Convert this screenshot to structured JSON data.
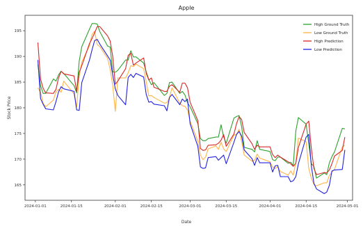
{
  "chart_data": {
    "type": "line",
    "title": "Apple",
    "xlabel": "Date",
    "ylabel": "Stock Price",
    "x_ticks": [
      "2024-01-01",
      "2024-01-15",
      "2024-02-01",
      "2024-02-15",
      "2024-03-01",
      "2024-03-15",
      "2024-04-01",
      "2024-04-15",
      "2024-05-01"
    ],
    "y_ticks": [
      165,
      170,
      175,
      180,
      185,
      190,
      195
    ],
    "xlim": [
      "2023-12-28",
      "2024-05-03"
    ],
    "ylim": [
      162,
      198
    ],
    "grid": false,
    "legend_position": "top-right",
    "series": [
      {
        "name": "High Ground Truth",
        "color": "#2ca02c",
        "x": [
          "2024-01-02",
          "2024-01-03",
          "2024-01-04",
          "2024-01-05",
          "2024-01-08",
          "2024-01-09",
          "2024-01-10",
          "2024-01-11",
          "2024-01-12",
          "2024-01-16",
          "2024-01-17",
          "2024-01-18",
          "2024-01-19",
          "2024-01-22",
          "2024-01-23",
          "2024-01-24",
          "2024-01-25",
          "2024-01-26",
          "2024-01-29",
          "2024-01-30",
          "2024-01-31",
          "2024-02-01",
          "2024-02-02",
          "2024-02-05",
          "2024-02-06",
          "2024-02-07",
          "2024-02-08",
          "2024-02-09",
          "2024-02-12",
          "2024-02-13",
          "2024-02-14",
          "2024-02-15",
          "2024-02-16",
          "2024-02-20",
          "2024-02-21",
          "2024-02-22",
          "2024-02-23",
          "2024-02-26",
          "2024-02-27",
          "2024-02-28",
          "2024-02-29",
          "2024-03-01",
          "2024-03-04",
          "2024-03-05",
          "2024-03-06",
          "2024-03-07",
          "2024-03-08",
          "2024-03-11",
          "2024-03-12",
          "2024-03-13",
          "2024-03-14",
          "2024-03-15",
          "2024-03-18",
          "2024-03-19",
          "2024-03-20",
          "2024-03-21",
          "2024-03-22",
          "2024-03-25",
          "2024-03-26",
          "2024-03-27",
          "2024-03-28",
          "2024-04-01",
          "2024-04-02",
          "2024-04-03",
          "2024-04-04",
          "2024-04-05",
          "2024-04-08",
          "2024-04-09",
          "2024-04-10",
          "2024-04-11",
          "2024-04-12",
          "2024-04-15",
          "2024-04-16",
          "2024-04-17",
          "2024-04-18",
          "2024-04-19",
          "2024-04-22",
          "2024-04-23",
          "2024-04-24",
          "2024-04-25",
          "2024-04-26",
          "2024-04-29",
          "2024-04-30"
        ],
        "y": [
          188.4,
          184.3,
          182.8,
          182.8,
          185.6,
          185.2,
          186.4,
          187.1,
          186.7,
          184.3,
          182.9,
          189.1,
          191.9,
          195.3,
          196.4,
          196.4,
          196.3,
          194.8,
          192.0,
          191.8,
          187.0,
          186.9,
          187.3,
          189.3,
          189.3,
          191.1,
          189.9,
          189.9,
          188.7,
          187.0,
          185.5,
          184.5,
          184.9,
          182.4,
          182.8,
          184.9,
          185.0,
          182.8,
          183.2,
          182.5,
          181.0,
          180.2,
          176.9,
          174.0,
          173.6,
          173.6,
          174.0,
          174.3,
          174.3,
          176.7,
          174.3,
          173.1,
          178.0,
          178.3,
          178.5,
          176.3,
          172.3,
          171.9,
          171.4,
          173.6,
          171.9,
          171.5,
          169.9,
          169.7,
          170.4,
          170.4,
          169.2,
          169.4,
          168.8,
          175.5,
          178.1,
          176.8,
          173.0,
          169.1,
          168.6,
          166.3,
          167.3,
          167.0,
          169.3,
          170.5,
          171.4,
          176.0,
          175.9
        ]
      },
      {
        "name": "Low Ground Truth",
        "color": "#ffb347",
        "x": [
          "2024-01-02",
          "2024-01-03",
          "2024-01-04",
          "2024-01-05",
          "2024-01-08",
          "2024-01-09",
          "2024-01-10",
          "2024-01-11",
          "2024-01-12",
          "2024-01-16",
          "2024-01-17",
          "2024-01-18",
          "2024-01-19",
          "2024-01-22",
          "2024-01-23",
          "2024-01-24",
          "2024-01-25",
          "2024-01-26",
          "2024-01-29",
          "2024-01-30",
          "2024-01-31",
          "2024-02-01",
          "2024-02-02",
          "2024-02-05",
          "2024-02-06",
          "2024-02-07",
          "2024-02-08",
          "2024-02-09",
          "2024-02-12",
          "2024-02-13",
          "2024-02-14",
          "2024-02-15",
          "2024-02-16",
          "2024-02-20",
          "2024-02-21",
          "2024-02-22",
          "2024-02-23",
          "2024-02-26",
          "2024-02-27",
          "2024-02-28",
          "2024-02-29",
          "2024-03-01",
          "2024-03-04",
          "2024-03-05",
          "2024-03-06",
          "2024-03-07",
          "2024-03-08",
          "2024-03-11",
          "2024-03-12",
          "2024-03-13",
          "2024-03-14",
          "2024-03-15",
          "2024-03-18",
          "2024-03-19",
          "2024-03-20",
          "2024-03-21",
          "2024-03-22",
          "2024-03-25",
          "2024-03-26",
          "2024-03-27",
          "2024-03-28",
          "2024-04-01",
          "2024-04-02",
          "2024-04-03",
          "2024-04-04",
          "2024-04-05",
          "2024-04-08",
          "2024-04-09",
          "2024-04-10",
          "2024-04-11",
          "2024-04-12",
          "2024-04-15",
          "2024-04-16",
          "2024-04-17",
          "2024-04-18",
          "2024-04-19",
          "2024-04-22",
          "2024-04-23",
          "2024-04-24",
          "2024-04-25",
          "2024-04-26",
          "2024-04-29",
          "2024-04-30"
        ],
        "y": [
          183.9,
          183.0,
          180.9,
          180.2,
          181.5,
          183.1,
          183.6,
          183.0,
          185.2,
          182.7,
          180.2,
          186.2,
          188.9,
          192.1,
          194.3,
          194.9,
          192.3,
          191.9,
          189.6,
          187.5,
          184.4,
          179.3,
          185.8,
          185.8,
          186.8,
          188.2,
          188.0,
          188.5,
          187.6,
          185.0,
          182.3,
          182.4,
          182.0,
          180.9,
          181.0,
          182.0,
          183.9,
          180.9,
          180.4,
          180.3,
          179.6,
          177.4,
          173.5,
          170.8,
          169.9,
          170.4,
          172.0,
          172.6,
          171.9,
          173.3,
          172.0,
          171.5,
          174.7,
          174.8,
          175.8,
          173.4,
          170.8,
          169.6,
          169.8,
          171.0,
          170.2,
          169.5,
          168.5,
          168.2,
          168.5,
          167.6,
          166.9,
          167.7,
          166.9,
          169.4,
          174.1,
          173.4,
          168.2,
          166.3,
          165.1,
          164.8,
          165.4,
          165.4,
          166.8,
          167.5,
          168.0,
          172.4,
          172.7
        ]
      },
      {
        "name": "High Prediction",
        "color": "#d62728",
        "x": [
          "2024-01-02",
          "2024-01-03",
          "2024-01-04",
          "2024-01-05",
          "2024-01-08",
          "2024-01-09",
          "2024-01-10",
          "2024-01-11",
          "2024-01-12",
          "2024-01-16",
          "2024-01-17",
          "2024-01-18",
          "2024-01-19",
          "2024-01-22",
          "2024-01-23",
          "2024-01-24",
          "2024-01-25",
          "2024-01-26",
          "2024-01-29",
          "2024-01-30",
          "2024-01-31",
          "2024-02-01",
          "2024-02-02",
          "2024-02-05",
          "2024-02-06",
          "2024-02-07",
          "2024-02-08",
          "2024-02-09",
          "2024-02-12",
          "2024-02-13",
          "2024-02-14",
          "2024-02-15",
          "2024-02-16",
          "2024-02-20",
          "2024-02-21",
          "2024-02-22",
          "2024-02-23",
          "2024-02-26",
          "2024-02-27",
          "2024-02-28",
          "2024-02-29",
          "2024-03-01",
          "2024-03-04",
          "2024-03-05",
          "2024-03-06",
          "2024-03-07",
          "2024-03-08",
          "2024-03-11",
          "2024-03-12",
          "2024-03-13",
          "2024-03-14",
          "2024-03-15",
          "2024-03-18",
          "2024-03-19",
          "2024-03-20",
          "2024-03-21",
          "2024-03-22",
          "2024-03-25",
          "2024-03-26",
          "2024-03-27",
          "2024-03-28",
          "2024-04-01",
          "2024-04-02",
          "2024-04-03",
          "2024-04-04",
          "2024-04-05",
          "2024-04-08",
          "2024-04-09",
          "2024-04-10",
          "2024-04-11",
          "2024-04-12",
          "2024-04-15",
          "2024-04-16",
          "2024-04-17",
          "2024-04-18",
          "2024-04-19",
          "2024-04-22",
          "2024-04-23",
          "2024-04-24",
          "2024-04-25",
          "2024-04-26",
          "2024-04-29",
          "2024-04-30"
        ],
        "y": [
          192.7,
          185.6,
          183.8,
          182.9,
          182.8,
          183.6,
          185.8,
          187.1,
          186.6,
          186.2,
          183.2,
          186.9,
          188.2,
          192.5,
          193.5,
          194.6,
          195.8,
          195.8,
          194.0,
          193.0,
          190.0,
          184.6,
          185.2,
          187.6,
          190.2,
          190.6,
          188.3,
          188.7,
          189.7,
          186.7,
          185.4,
          185.8,
          184.0,
          183.2,
          183.2,
          184.2,
          184.5,
          183.0,
          184.8,
          184.8,
          183.9,
          181.1,
          177.5,
          172.1,
          171.7,
          171.8,
          172.7,
          172.8,
          173.1,
          173.7,
          174.8,
          172.5,
          174.9,
          176.9,
          178.3,
          177.7,
          175.2,
          173.0,
          171.9,
          172.7,
          172.4,
          172.4,
          170.9,
          170.3,
          170.8,
          170.4,
          169.5,
          169.1,
          168.6,
          169.2,
          172.3,
          176.8,
          177.4,
          172.1,
          168.2,
          167.0,
          167.4,
          167.3,
          167.9,
          169.1,
          170.6,
          171.7,
          174.3
        ]
      },
      {
        "name": "Low Prediction",
        "color": "#2020e0",
        "x": [
          "2024-01-02",
          "2024-01-03",
          "2024-01-04",
          "2024-01-05",
          "2024-01-08",
          "2024-01-09",
          "2024-01-10",
          "2024-01-11",
          "2024-01-12",
          "2024-01-16",
          "2024-01-17",
          "2024-01-18",
          "2024-01-19",
          "2024-01-22",
          "2024-01-23",
          "2024-01-24",
          "2024-01-25",
          "2024-01-26",
          "2024-01-29",
          "2024-01-30",
          "2024-01-31",
          "2024-02-01",
          "2024-02-02",
          "2024-02-05",
          "2024-02-06",
          "2024-02-07",
          "2024-02-08",
          "2024-02-09",
          "2024-02-12",
          "2024-02-13",
          "2024-02-14",
          "2024-02-15",
          "2024-02-16",
          "2024-02-20",
          "2024-02-21",
          "2024-02-22",
          "2024-02-23",
          "2024-02-26",
          "2024-02-27",
          "2024-02-28",
          "2024-02-29",
          "2024-03-01",
          "2024-03-04",
          "2024-03-05",
          "2024-03-06",
          "2024-03-07",
          "2024-03-08",
          "2024-03-11",
          "2024-03-12",
          "2024-03-13",
          "2024-03-14",
          "2024-03-15",
          "2024-03-18",
          "2024-03-19",
          "2024-03-20",
          "2024-03-21",
          "2024-03-22",
          "2024-03-25",
          "2024-03-26",
          "2024-03-27",
          "2024-03-28",
          "2024-04-01",
          "2024-04-02",
          "2024-04-03",
          "2024-04-04",
          "2024-04-05",
          "2024-04-08",
          "2024-04-09",
          "2024-04-10",
          "2024-04-11",
          "2024-04-12",
          "2024-04-15",
          "2024-04-16",
          "2024-04-17",
          "2024-04-18",
          "2024-04-19",
          "2024-04-22",
          "2024-04-23",
          "2024-04-24",
          "2024-04-25",
          "2024-04-26",
          "2024-04-29",
          "2024-04-30"
        ],
        "y": [
          189.3,
          181.8,
          180.7,
          179.8,
          179.6,
          181.2,
          183.1,
          184.1,
          183.7,
          183.2,
          179.6,
          179.5,
          184.9,
          189.3,
          191.3,
          193.1,
          193.3,
          192.4,
          190.1,
          189.3,
          186.4,
          183.7,
          182.4,
          180.6,
          185.9,
          186.5,
          185.9,
          186.7,
          186.0,
          182.6,
          181.1,
          181.2,
          180.7,
          180.4,
          179.4,
          182.0,
          182.6,
          180.6,
          181.7,
          181.2,
          181.7,
          176.9,
          172.5,
          168.5,
          168.2,
          168.3,
          170.3,
          170.5,
          169.8,
          170.3,
          170.8,
          169.1,
          173.3,
          174.8,
          175.4,
          174.5,
          171.8,
          170.1,
          168.8,
          170.3,
          169.3,
          169.3,
          167.5,
          168.7,
          168.8,
          166.6,
          166.6,
          165.6,
          165.8,
          166.6,
          169.1,
          174.3,
          174.8,
          168.7,
          165.3,
          164.2,
          163.3,
          163.6,
          164.9,
          167.7,
          167.9,
          168.0,
          171.8
        ]
      }
    ]
  }
}
